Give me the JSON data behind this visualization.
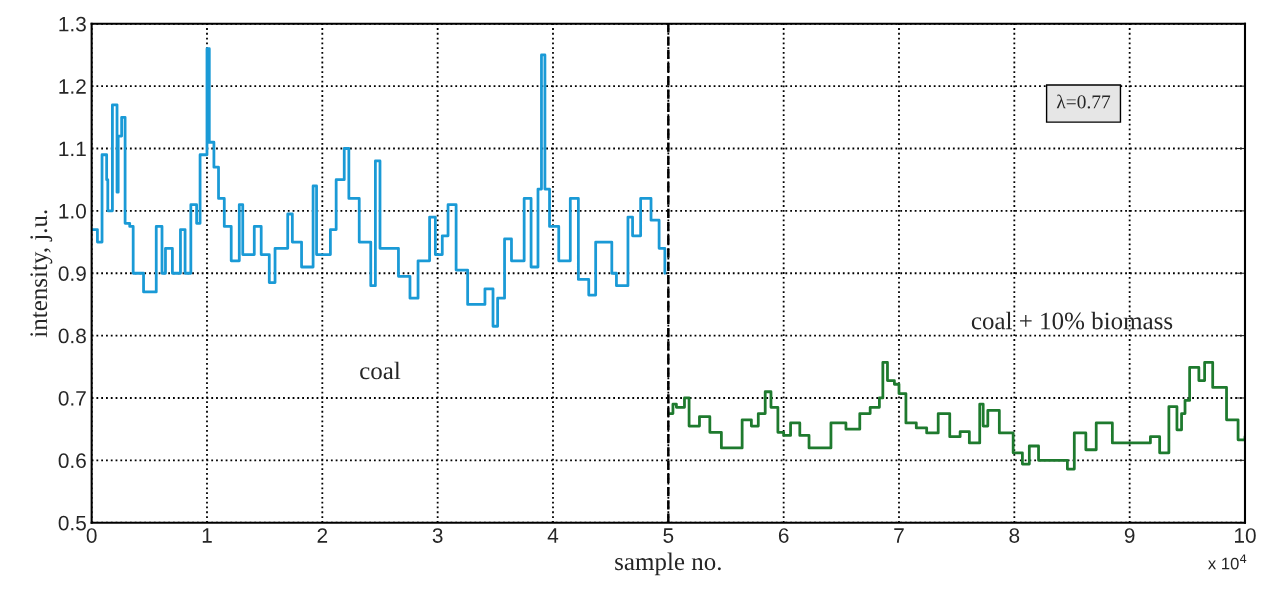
{
  "chart_data": {
    "type": "step",
    "xlabel": "sample no.",
    "ylabel": "intensity, j.u.",
    "xlim": [
      0,
      10
    ],
    "ylim": [
      0.5,
      1.3
    ],
    "xticks": [
      0,
      1,
      2,
      3,
      4,
      5,
      6,
      7,
      8,
      9,
      10
    ],
    "yticks": [
      {
        "value": 0.5,
        "label": "0.5"
      },
      {
        "value": 0.6,
        "label": "0.6"
      },
      {
        "value": 0.7,
        "label": "0.7"
      },
      {
        "value": 0.8,
        "label": "0.8"
      },
      {
        "value": 0.9,
        "label": "0.9"
      },
      {
        "value": 1.0,
        "label": "1.0"
      },
      {
        "value": 1.1,
        "label": "1.1"
      },
      {
        "value": 1.2,
        "label": "1.2"
      },
      {
        "value": 1.3,
        "label": "1.3"
      }
    ],
    "grid": true,
    "legend": false,
    "series": [
      {
        "color": "#1a9ad6",
        "x": [
          0.0,
          0.05,
          0.09,
          0.13,
          0.14,
          0.18,
          0.22,
          0.23,
          0.26,
          0.29,
          0.33,
          0.36,
          0.45,
          0.53,
          0.56,
          0.61,
          0.64,
          0.7,
          0.77,
          0.81,
          0.86,
          0.91,
          0.94,
          1.0,
          1.02,
          1.06,
          1.1,
          1.15,
          1.21,
          1.28,
          1.31,
          1.41,
          1.47,
          1.54,
          1.59,
          1.7,
          1.74,
          1.82,
          1.92,
          1.95,
          2.07,
          2.12,
          2.19,
          2.23,
          2.32,
          2.42,
          2.46,
          2.5,
          2.54,
          2.66,
          2.76,
          2.83,
          2.93,
          2.98,
          3.04,
          3.09,
          3.16,
          3.26,
          3.35,
          3.41,
          3.48,
          3.52,
          3.58,
          3.64,
          3.75,
          3.81,
          3.87,
          3.9,
          3.93,
          3.97,
          4.05,
          4.15,
          4.22,
          4.31,
          4.37,
          4.51,
          4.55,
          4.65,
          4.69,
          4.76,
          4.85,
          4.92,
          4.97
        ],
        "values": [
          0.97,
          0.95,
          1.09,
          1.05,
          1.0,
          1.17,
          1.03,
          1.12,
          1.15,
          0.98,
          0.975,
          0.9,
          0.87,
          0.87,
          0.975,
          0.9,
          0.94,
          0.9,
          0.97,
          0.9,
          1.01,
          0.98,
          1.09,
          1.26,
          1.11,
          1.07,
          1.02,
          0.975,
          0.92,
          1.01,
          0.93,
          0.975,
          0.93,
          0.885,
          0.94,
          0.995,
          0.95,
          0.91,
          1.04,
          0.93,
          0.97,
          1.05,
          1.1,
          1.02,
          0.95,
          0.88,
          1.08,
          0.94,
          0.94,
          0.895,
          0.86,
          0.92,
          0.99,
          0.93,
          0.96,
          1.01,
          0.905,
          0.85,
          0.85,
          0.875,
          0.815,
          0.86,
          0.955,
          0.92,
          1.02,
          0.91,
          1.035,
          1.25,
          1.035,
          0.975,
          0.92,
          1.02,
          0.89,
          0.865,
          0.95,
          0.9,
          0.88,
          0.99,
          0.96,
          1.02,
          0.985,
          0.94,
          0.9
        ]
      },
      {
        "color": "#1e7a2e",
        "x": [
          5.0,
          5.04,
          5.07,
          5.14,
          5.18,
          5.27,
          5.36,
          5.46,
          5.54,
          5.64,
          5.72,
          5.78,
          5.84,
          5.89,
          5.95,
          6.0,
          6.06,
          6.14,
          6.22,
          6.37,
          6.41,
          6.54,
          6.66,
          6.75,
          6.83,
          6.86,
          6.9,
          6.96,
          7.0,
          7.06,
          7.15,
          7.24,
          7.34,
          7.44,
          7.53,
          7.61,
          7.7,
          7.73,
          7.77,
          7.87,
          7.99,
          8.07,
          8.13,
          8.21,
          8.36,
          8.46,
          8.52,
          8.62,
          8.71,
          8.77,
          8.85,
          8.97,
          9.06,
          9.18,
          9.26,
          9.34,
          9.41,
          9.45,
          9.48,
          9.52,
          9.6,
          9.65,
          9.72,
          9.84,
          9.94,
          10.0
        ],
        "values": [
          0.675,
          0.69,
          0.685,
          0.7,
          0.655,
          0.67,
          0.645,
          0.62,
          0.62,
          0.665,
          0.655,
          0.675,
          0.71,
          0.685,
          0.645,
          0.64,
          0.66,
          0.64,
          0.62,
          0.62,
          0.66,
          0.65,
          0.675,
          0.685,
          0.7,
          0.757,
          0.728,
          0.722,
          0.707,
          0.66,
          0.652,
          0.644,
          0.675,
          0.638,
          0.646,
          0.628,
          0.69,
          0.655,
          0.68,
          0.644,
          0.612,
          0.594,
          0.623,
          0.6,
          0.6,
          0.586,
          0.644,
          0.617,
          0.66,
          0.66,
          0.628,
          0.628,
          0.628,
          0.638,
          0.612,
          0.686,
          0.649,
          0.675,
          0.696,
          0.749,
          0.728,
          0.757,
          0.717,
          0.665,
          0.633,
          0.638
        ]
      }
    ],
    "ref_lines": [
      {
        "axis": "x",
        "value": 5,
        "line_style": "dashed",
        "color": "#000000"
      }
    ],
    "annotations": [
      "coal",
      "coal + 10% biomass",
      "λ=0.77",
      "x 10$^{4}$"
    ]
  }
}
